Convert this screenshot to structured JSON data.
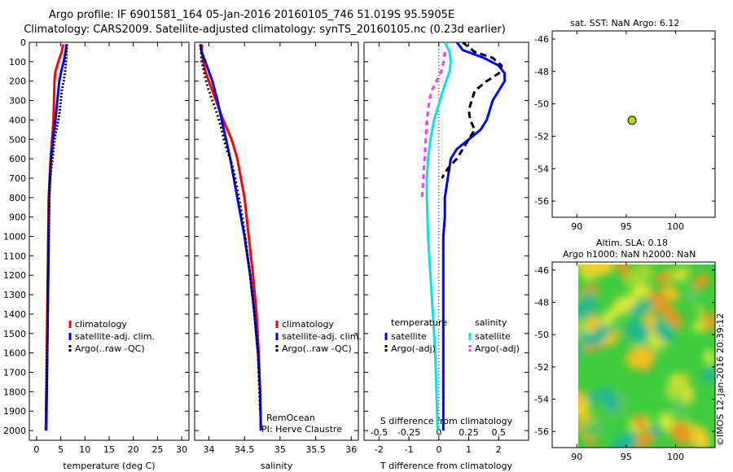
{
  "header": {
    "title_line1": "Argo profile: IF 6901581_164 05-Jan-2016 20160105_746 51.019S 95.5905E",
    "title_line2": "Climatology: CARS2009. Satellite-adjusted climatology: synTS_20160105.nc (0.23d earlier)"
  },
  "colors": {
    "climatology": "#ff0000",
    "satellite": "#0000ff",
    "argo": "#000000",
    "satellite_cyan": "#00e5e5",
    "argo_magenta": "#ff33ff",
    "marker": "#aadd00"
  },
  "chart_data": [
    {
      "type": "line",
      "id": "temperature-profile",
      "xlabel": "temperature (deg C)",
      "ylabel": "",
      "xlim": [
        -1.5,
        31.5
      ],
      "ylim": [
        2050,
        0
      ],
      "xticks": [
        0,
        5,
        10,
        15,
        20,
        25,
        30
      ],
      "yticks": [
        0,
        100,
        200,
        300,
        400,
        500,
        600,
        700,
        800,
        900,
        1000,
        1100,
        1200,
        1300,
        1400,
        1500,
        1600,
        1700,
        1800,
        1900,
        2000
      ],
      "legend": [
        "climatology",
        "satellite-adj. clim.",
        "Argo(..raw -QC)"
      ],
      "series": [
        {
          "name": "climatology",
          "depth": [
            10,
            50,
            100,
            150,
            200,
            300,
            400,
            500,
            600,
            700,
            800,
            1000,
            1200,
            1400,
            1600,
            1800,
            2000
          ],
          "x": [
            5.5,
            5.2,
            4.5,
            3.9,
            3.7,
            3.6,
            3.5,
            3.2,
            2.9,
            2.7,
            2.5,
            2.4,
            2.3,
            2.2,
            2.1,
            2.0,
            1.9
          ]
        },
        {
          "name": "satellite-adj. clim.",
          "depth": [
            10,
            50,
            100,
            150,
            200,
            300,
            400,
            500,
            600,
            700,
            800,
            1000,
            1200,
            1400,
            1600,
            1800,
            2000
          ],
          "x": [
            6.2,
            6.0,
            5.6,
            5.1,
            4.7,
            4.3,
            3.9,
            3.4,
            3.0,
            2.8,
            2.6,
            2.5,
            2.4,
            2.3,
            2.2,
            2.1,
            2.0
          ]
        },
        {
          "name": "Argo(..raw -QC)",
          "depth": [
            10,
            50,
            100,
            150,
            200,
            250,
            300,
            350,
            400,
            450,
            500,
            550,
            600,
            650,
            700,
            800,
            1000,
            1200,
            1400,
            1600,
            1800,
            1900
          ],
          "x": [
            6.3,
            6.2,
            6.1,
            5.9,
            5.6,
            5.2,
            5.0,
            4.8,
            4.5,
            4.1,
            3.7,
            3.5,
            3.3,
            3.0,
            2.8,
            2.6,
            2.5,
            2.4,
            2.3,
            2.2,
            2.1,
            2.0
          ]
        }
      ]
    },
    {
      "type": "line",
      "id": "salinity-profile",
      "xlabel": "salinity",
      "xlim": [
        33.8,
        36.1
      ],
      "ylim": [
        2050,
        0
      ],
      "xticks": [
        34,
        34.5,
        35,
        35.5,
        36
      ],
      "legend": [
        "climatology",
        "satellite-adj. clim.",
        "Argo(..raw -QC)"
      ],
      "annotations": [
        "RemOcean",
        "PI: Herve Claustre"
      ],
      "series": [
        {
          "name": "climatology",
          "depth": [
            10,
            50,
            100,
            150,
            200,
            300,
            400,
            500,
            600,
            700,
            800,
            1000,
            1200,
            1400,
            1600,
            1800,
            2000
          ],
          "x": [
            33.9,
            33.9,
            33.92,
            33.95,
            34.0,
            34.1,
            34.2,
            34.32,
            34.4,
            34.45,
            34.5,
            34.56,
            34.62,
            34.67,
            34.7,
            34.72,
            34.73
          ]
        },
        {
          "name": "satellite-adj. clim.",
          "depth": [
            10,
            50,
            100,
            150,
            200,
            300,
            400,
            500,
            600,
            700,
            800,
            1000,
            1200,
            1400,
            1600,
            1800,
            2000
          ],
          "x": [
            33.88,
            33.9,
            33.95,
            34.0,
            34.05,
            34.12,
            34.18,
            34.24,
            34.3,
            34.35,
            34.4,
            34.5,
            34.58,
            34.64,
            34.69,
            34.72,
            34.73
          ]
        },
        {
          "name": "Argo(..raw -QC)",
          "depth": [
            10,
            50,
            100,
            150,
            200,
            250,
            300,
            350,
            400,
            450,
            500,
            550,
            600,
            650,
            700,
            800,
            900,
            1000,
            1200,
            1400,
            1600,
            1800,
            1900
          ],
          "x": [
            33.88,
            33.89,
            33.9,
            33.93,
            33.96,
            34.0,
            34.05,
            34.1,
            34.14,
            34.18,
            34.21,
            34.25,
            34.3,
            34.34,
            34.37,
            34.42,
            34.47,
            34.51,
            34.58,
            34.64,
            34.69,
            34.71,
            34.72
          ]
        }
      ]
    },
    {
      "type": "line",
      "id": "difference-profile",
      "xlabel": "T difference from climatology",
      "x2label": "S difference from climatology",
      "xlim": [
        -2.5,
        3.0
      ],
      "ylim": [
        2050,
        0
      ],
      "xticks": [
        -2,
        -1,
        0,
        1,
        2
      ],
      "x2ticks": [
        -0.5,
        -0.25,
        0,
        0.25,
        0.5
      ],
      "legend_temperature_heading": "temperature",
      "legend_salinity_heading": "salinity",
      "legend": [
        "satellite",
        "Argo(-adj)",
        "satellite",
        "Argo(-adj)"
      ],
      "series": [
        {
          "name": "satellite",
          "group": "temperature",
          "depth": [
            0,
            40,
            80,
            120,
            160,
            200,
            250,
            300,
            350,
            400,
            450,
            500,
            550,
            600,
            700,
            800,
            900,
            1000,
            1200,
            1400,
            1600,
            1800,
            2000
          ],
          "x": [
            0.6,
            0.8,
            1.5,
            2.0,
            2.2,
            2.2,
            2.0,
            1.8,
            1.7,
            1.6,
            1.4,
            1.0,
            0.6,
            0.4,
            0.3,
            0.2,
            0.2,
            0.15,
            0.15,
            0.15,
            0.15,
            0.15,
            0.15
          ]
        },
        {
          "name": "Argo(-adj)",
          "group": "temperature",
          "depth": [
            0,
            50,
            80,
            120,
            160,
            200,
            250,
            300,
            350,
            400,
            450,
            500,
            550,
            600,
            650,
            700
          ],
          "x": [
            0.8,
            1.2,
            1.8,
            2.1,
            2.0,
            1.6,
            1.2,
            1.1,
            1.0,
            1.05,
            1.2,
            1.0,
            0.8,
            0.6,
            0.3,
            0.1
          ]
        },
        {
          "name": "satellite",
          "group": "salinity",
          "depth": [
            0,
            50,
            100,
            150,
            200,
            300,
            400,
            500,
            600,
            700,
            800,
            1000,
            1200,
            1400,
            1600,
            1800,
            2000
          ],
          "x": [
            0.05,
            0.09,
            0.1,
            0.09,
            0.06,
            0.01,
            -0.04,
            -0.07,
            -0.09,
            -0.1,
            -0.1,
            -0.09,
            -0.07,
            -0.05,
            -0.03,
            -0.02,
            -0.01
          ]
        },
        {
          "name": "Argo(-adj)",
          "group": "salinity",
          "depth": [
            50,
            100,
            150,
            200,
            250,
            300,
            400,
            500,
            600,
            700,
            800
          ],
          "x": [
            0.05,
            0.04,
            0.02,
            -0.02,
            -0.06,
            -0.08,
            -0.1,
            -0.11,
            -0.12,
            -0.13,
            -0.14
          ]
        }
      ]
    },
    {
      "type": "scatter",
      "id": "location-map",
      "title": "sat. SST: NaN Argo: 6.12",
      "xlim": [
        87.5,
        104
      ],
      "ylim": [
        -57,
        -45.5
      ],
      "xticks": [
        90,
        95,
        100
      ],
      "yticks": [
        -46,
        -48,
        -50,
        -52,
        -54,
        -56
      ],
      "points": [
        {
          "x": 95.59,
          "y": -51.02
        }
      ]
    },
    {
      "type": "heatmap",
      "id": "sla-map",
      "title_line1": "Altim. SLA: 0.18",
      "title_line2": "Argo h1000: NaN h2000: NaN",
      "xlim": [
        87.5,
        104
      ],
      "ylim": [
        -57,
        -45.5
      ],
      "xticks": [
        90,
        95,
        100
      ],
      "yticks": [
        -46,
        -48,
        -50,
        -52,
        -54,
        -56
      ],
      "data_xlim": [
        90,
        104
      ],
      "side_label": "©IMOS 12-Jan-2016 20:39:12"
    }
  ]
}
